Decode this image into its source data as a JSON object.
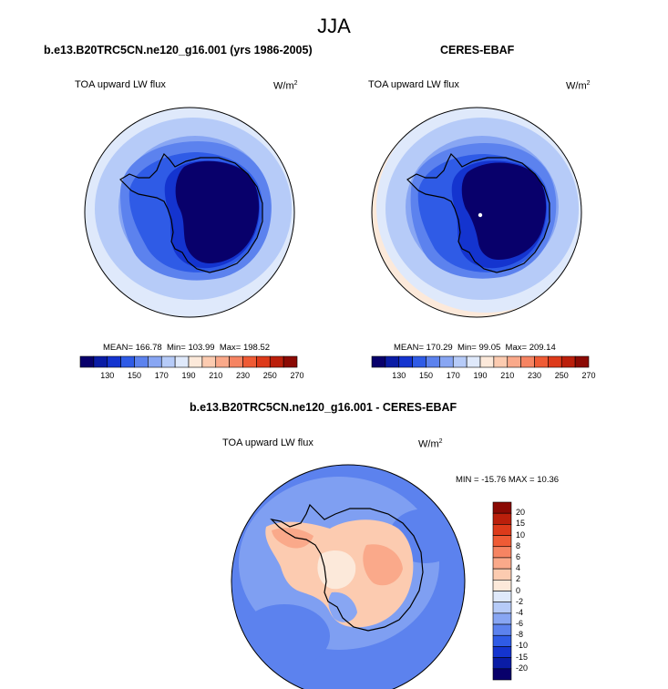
{
  "figure": {
    "season": "JJA"
  },
  "panels": [
    {
      "title": "b.e13.B20TRC5CN.ne120_g16.001 (yrs 1986-2005)",
      "variable": "TOA upward LW flux",
      "units_base": "W/m",
      "units_exp": "2",
      "stats": {
        "mean_label": "MEAN=",
        "mean": "166.78",
        "min_label": "Min=",
        "min": "103.99",
        "max_label": "Max=",
        "max": "198.52"
      }
    },
    {
      "title": "CERES-EBAF",
      "variable": "TOA upward LW flux",
      "units_base": "W/m",
      "units_exp": "2",
      "stats": {
        "mean_label": "MEAN=",
        "mean": "170.29",
        "min_label": "Min=",
        "min": "99.05",
        "max_label": "Max=",
        "max": "209.14"
      }
    },
    {
      "title": "b.e13.B20TRC5CN.ne120_g16.001 - CERES-EBAF",
      "variable": "TOA upward LW flux",
      "units_base": "W/m",
      "units_exp": "2",
      "stats": {
        "min_label": "MIN =",
        "min": "-15.76",
        "max_label": "MAX =",
        "max": "10.36"
      }
    }
  ],
  "colorbars": {
    "absolute": {
      "tick_labels": [
        "130",
        "150",
        "170",
        "190",
        "210",
        "230",
        "250",
        "270"
      ],
      "colors": [
        "#08006b",
        "#0a1ca5",
        "#1434cf",
        "#2f5be6",
        "#5c82ee",
        "#88a6f3",
        "#b6cbf8",
        "#dfe9fb",
        "#fce9da",
        "#fccbb0",
        "#faa98a",
        "#f68462",
        "#ef5b35",
        "#dd3a1a",
        "#bb1f0b",
        "#8b0a04"
      ]
    },
    "difference": {
      "tick_labels": [
        "20",
        "15",
        "10",
        "8",
        "6",
        "4",
        "2",
        "0",
        "-2",
        "-4",
        "-6",
        "-8",
        "-10",
        "-15",
        "-20"
      ],
      "colors": [
        "#8b0a04",
        "#bb1f0b",
        "#dd3a1a",
        "#ef5b35",
        "#f68462",
        "#faa98a",
        "#fccbb0",
        "#fce9da",
        "#dfe9fb",
        "#b6cbf8",
        "#88a6f3",
        "#5c82ee",
        "#2f5be6",
        "#1434cf",
        "#0a1ca5",
        "#08006b"
      ]
    }
  },
  "map_colors": {
    "outer": "#dfe9fb",
    "ring1": "#b6cbf8",
    "ring2": "#88a6f3",
    "ring3": "#5c82ee",
    "ring4": "#2f5be6",
    "ring5": "#1434cf",
    "core": "#08006b",
    "warm_rim": "#fce9da",
    "diff_ocean": "#5c82ee",
    "diff_ocean2": "#88a6f3",
    "diff_land": "#fccbb0",
    "diff_land2": "#faa98a",
    "diff_white": "#fce9da"
  }
}
